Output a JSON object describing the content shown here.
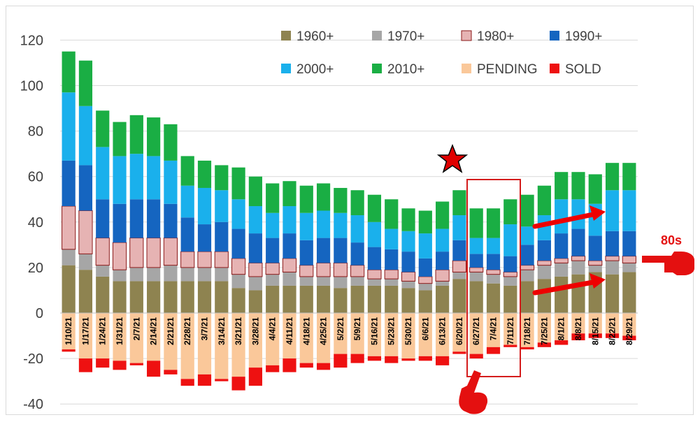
{
  "chart_data": {
    "type": "bar",
    "stacked": true,
    "categories": [
      "1/10/21",
      "1/17/21",
      "1/24/21",
      "1/31/21",
      "2/7/21",
      "2/14/21",
      "2/21/21",
      "2/28/21",
      "3/7/21",
      "3/14/21",
      "3/21/21",
      "3/28/21",
      "4/4/21",
      "4/11/21",
      "4/18/21",
      "4/25/21",
      "5/2/21",
      "5/9/21",
      "5/16/21",
      "5/23/21",
      "5/30/21",
      "6/6/21",
      "6/13/21",
      "6/20/21",
      "6/27/21",
      "7/4/21",
      "7/11/21",
      "7/18/21",
      "7/25/21",
      "8/1/21",
      "8/8/21",
      "8/15/21",
      "8/22/21",
      "8/29/21"
    ],
    "ylim": [
      -40,
      120
    ],
    "yticks": [
      -40,
      -20,
      0,
      20,
      40,
      60,
      80,
      100,
      120
    ],
    "grid": true,
    "legend_position": "top-right",
    "series": [
      {
        "name": "1960+",
        "color": "#8e8350",
        "values": [
          21,
          19,
          16,
          14,
          14,
          14,
          14,
          14,
          14,
          14,
          11,
          10,
          12,
          12,
          12,
          12,
          11,
          12,
          12,
          12,
          11,
          10,
          12,
          15,
          14,
          13,
          12,
          14,
          15,
          16,
          17,
          18,
          17,
          18
        ]
      },
      {
        "name": "1970+",
        "color": "#a6a6a6",
        "values": [
          7,
          7,
          5,
          5,
          6,
          6,
          7,
          6,
          6,
          6,
          6,
          6,
          5,
          6,
          4,
          4,
          5,
          4,
          3,
          3,
          3,
          3,
          2,
          3,
          4,
          4,
          4,
          5,
          6,
          6,
          6,
          3,
          6,
          4
        ]
      },
      {
        "name": "1980+",
        "color": "#e6b3b3",
        "values": [
          19,
          19,
          12,
          12,
          13,
          13,
          12,
          7,
          7,
          7,
          7,
          6,
          5,
          6,
          5,
          6,
          6,
          5,
          4,
          4,
          4,
          3,
          5,
          5,
          2,
          2,
          2,
          2,
          2,
          2,
          2,
          2,
          2,
          3
        ]
      },
      {
        "name": "1990+",
        "color": "#1565c0",
        "values": [
          20,
          20,
          17,
          17,
          17,
          17,
          15,
          15,
          12,
          13,
          13,
          13,
          11,
          11,
          11,
          11,
          11,
          10,
          10,
          9,
          9,
          8,
          8,
          9,
          6,
          7,
          7,
          9,
          9,
          11,
          12,
          11,
          11,
          11
        ]
      },
      {
        "name": "2000+",
        "color": "#1ab0ec",
        "values": [
          30,
          26,
          23,
          21,
          20,
          19,
          19,
          14,
          16,
          14,
          13,
          12,
          11,
          12,
          12,
          12,
          11,
          12,
          11,
          9,
          9,
          11,
          10,
          11,
          7,
          7,
          14,
          8,
          11,
          15,
          13,
          14,
          18,
          18
        ]
      },
      {
        "name": "2010+",
        "color": "#1aae44",
        "values": [
          18,
          20,
          16,
          15,
          17,
          17,
          16,
          13,
          12,
          11,
          14,
          13,
          13,
          11,
          12,
          12,
          11,
          11,
          12,
          13,
          10,
          10,
          12,
          11,
          13,
          13,
          11,
          14,
          13,
          12,
          12,
          13,
          12,
          12
        ]
      },
      {
        "name": "PENDING",
        "color": "#fac89a",
        "values": [
          -16,
          -20,
          -20,
          -21,
          -22,
          -21,
          -25,
          -29,
          -27,
          -29,
          -28,
          -24,
          -23,
          -20,
          -22,
          -22,
          -18,
          -18,
          -19,
          -19,
          -20,
          -19,
          -19,
          -17,
          -18,
          -15,
          -14,
          -15,
          -13,
          -12,
          -9,
          -9,
          -9,
          -10
        ]
      },
      {
        "name": "SOLD",
        "color": "#ee1111",
        "values": [
          -1,
          -6,
          -4,
          -4,
          -1,
          -7,
          -2,
          -3,
          -5,
          -1,
          -6,
          -8,
          -3,
          -6,
          -2,
          -3,
          -6,
          -4,
          -2,
          -3,
          -1,
          -2,
          -4,
          -1,
          -2,
          -3,
          -1,
          -1,
          -2,
          -2,
          -3,
          -2,
          -2,
          -2
        ]
      }
    ],
    "annotations": {
      "callout_label": "80s"
    }
  }
}
